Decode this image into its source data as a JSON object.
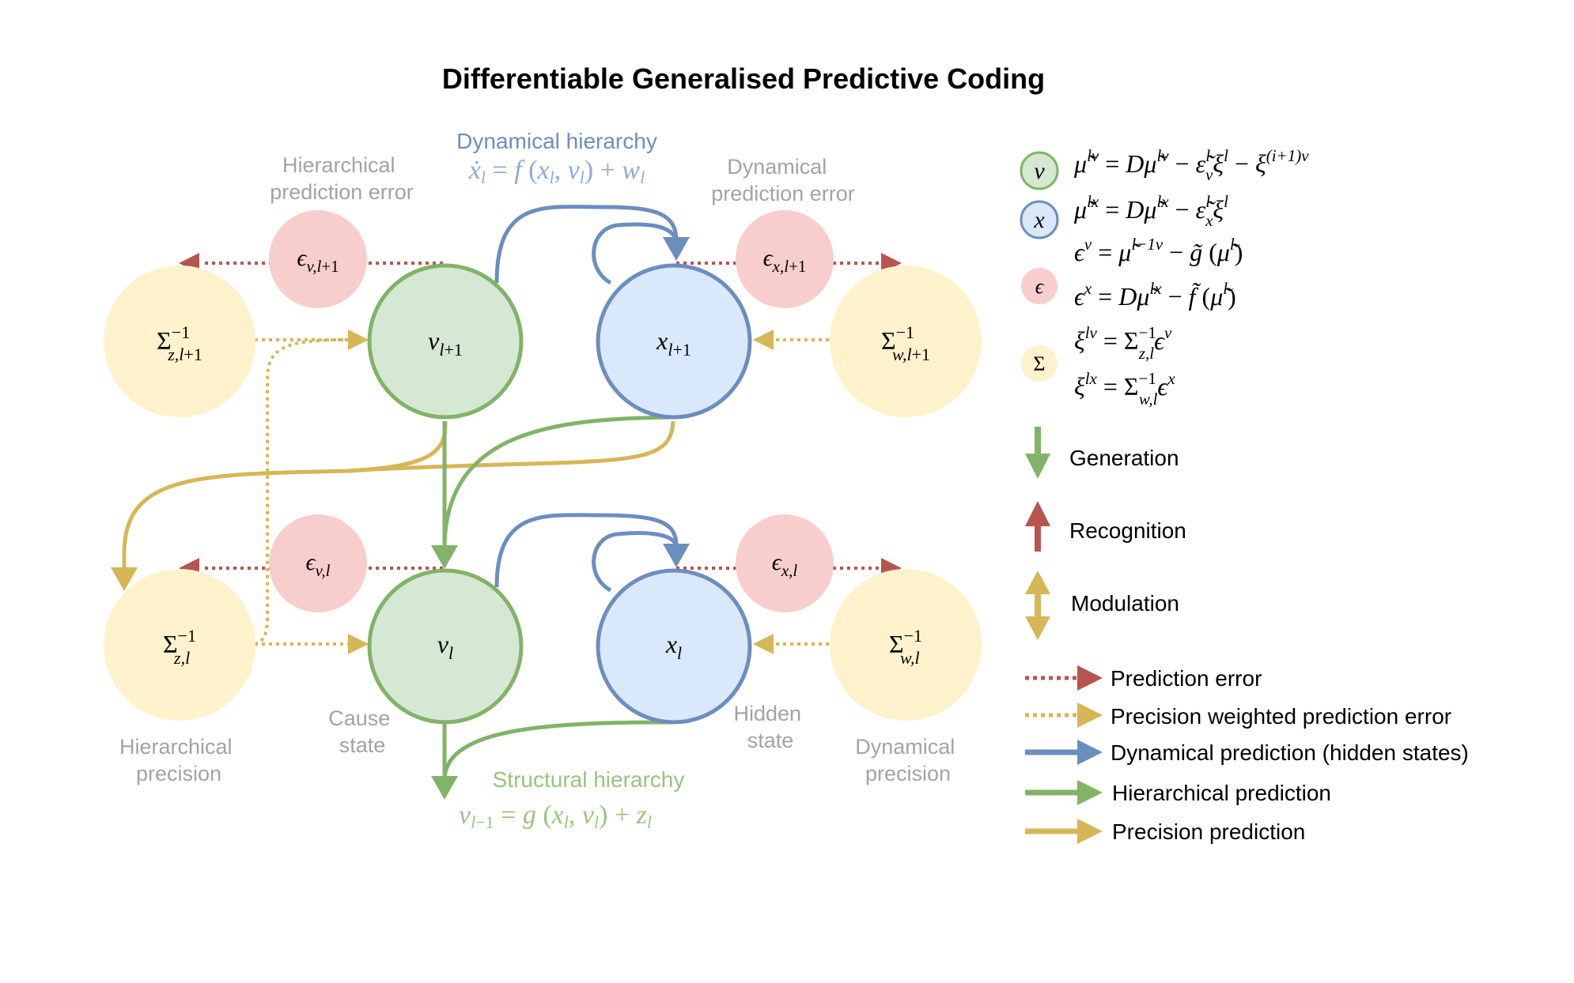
{
  "title": "Differentiable Generalised Predictive Coding",
  "labels": {
    "dynamical_hierarchy": "Dynamical hierarchy",
    "structural_hierarchy": "Structural hierarchy",
    "hier_pred_error": [
      "Hierarchical",
      "prediction error"
    ],
    "dyn_pred_error": [
      "Dynamical",
      "prediction error"
    ],
    "cause_state": [
      "Cause",
      "state"
    ],
    "hidden_state": [
      "Hidden",
      "state"
    ],
    "hier_precision": [
      "Hierarchical",
      "precision"
    ],
    "dyn_precision": [
      "Dynamical",
      "precision"
    ]
  },
  "legend": {
    "symbols": {
      "v": "v",
      "x": "x",
      "eps": "ϵ",
      "sigma": "Σ"
    },
    "arrows": {
      "generation": "Generation",
      "recognition": "Recognition",
      "modulation": "Modulation"
    },
    "lines": [
      {
        "label": "Prediction error",
        "color": "#b5504f",
        "style": "dotted"
      },
      {
        "label": "Precision weighted prediction error",
        "color": "#d6b65a",
        "style": "dotted"
      },
      {
        "label": "Dynamical prediction (hidden states)",
        "color": "#6c8ebf",
        "style": "solid"
      },
      {
        "label": "Hierarchical prediction",
        "color": "#82b366",
        "style": "solid"
      },
      {
        "label": "Precision prediction",
        "color": "#d6b656",
        "style": "solid"
      }
    ]
  },
  "colors": {
    "green_fill": "#d5e8d4",
    "green_stroke": "#82b366",
    "blue_fill": "#dae8fc",
    "blue_stroke": "#6c8ebf",
    "red_fill": "#f8cecc",
    "red_stroke": "#b85450",
    "yellow_fill": "#fff2cc",
    "yellow_stroke": "#d6b656"
  }
}
